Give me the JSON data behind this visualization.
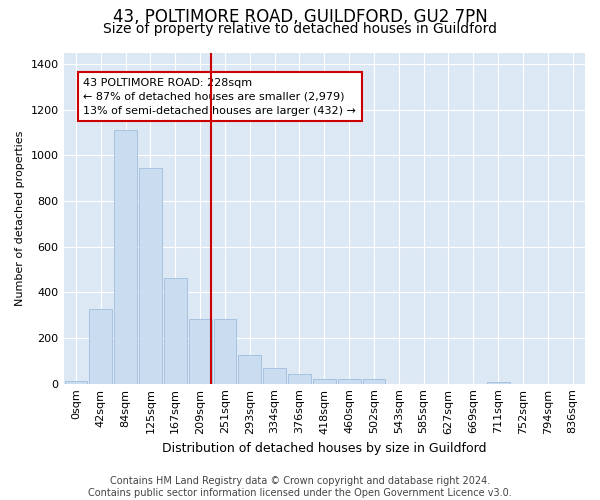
{
  "title": "43, POLTIMORE ROAD, GUILDFORD, GU2 7PN",
  "subtitle": "Size of property relative to detached houses in Guildford",
  "xlabel": "Distribution of detached houses by size in Guildford",
  "ylabel": "Number of detached properties",
  "footer_line1": "Contains HM Land Registry data © Crown copyright and database right 2024.",
  "footer_line2": "Contains public sector information licensed under the Open Government Licence v3.0.",
  "bar_labels": [
    "0sqm",
    "42sqm",
    "84sqm",
    "125sqm",
    "167sqm",
    "209sqm",
    "251sqm",
    "293sqm",
    "334sqm",
    "376sqm",
    "418sqm",
    "460sqm",
    "502sqm",
    "543sqm",
    "585sqm",
    "627sqm",
    "669sqm",
    "711sqm",
    "752sqm",
    "794sqm",
    "836sqm"
  ],
  "bar_values": [
    10,
    328,
    1110,
    945,
    462,
    285,
    285,
    125,
    68,
    42,
    22,
    22,
    22,
    0,
    0,
    0,
    0,
    6,
    0,
    0,
    0
  ],
  "bar_color": "#c9dcf0",
  "bar_edge_color": "#a0bedd",
  "vline_x_index": 5.43,
  "vline_color": "#cc0000",
  "annotation_text_line1": "43 POLTIMORE ROAD: 228sqm",
  "annotation_text_line2": "← 87% of detached houses are smaller (2,979)",
  "annotation_text_line3": "13% of semi-detached houses are larger (432) →",
  "annotation_box_color": "#cc0000",
  "ylim": [
    0,
    1450
  ],
  "yticks": [
    0,
    200,
    400,
    600,
    800,
    1000,
    1200,
    1400
  ],
  "fig_bg_color": "#ffffff",
  "plot_bg_color": "#dde8f5",
  "grid_color": "#ffffff",
  "title_fontsize": 12,
  "subtitle_fontsize": 10,
  "tick_fontsize": 8,
  "ylabel_fontsize": 8,
  "xlabel_fontsize": 9,
  "footer_fontsize": 7
}
